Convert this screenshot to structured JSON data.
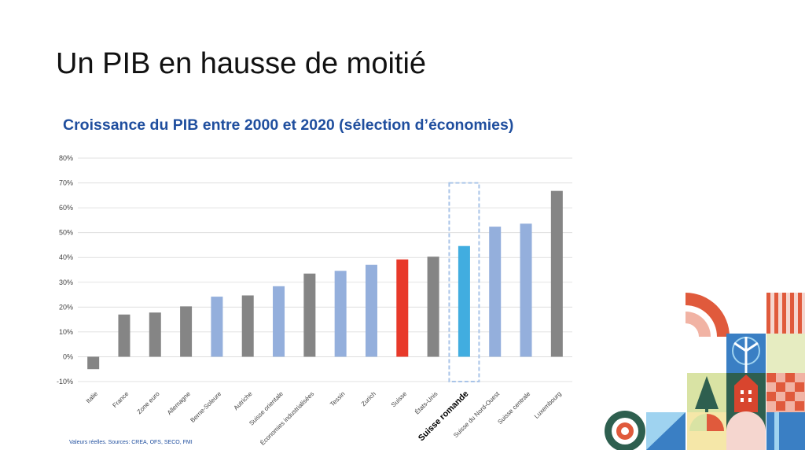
{
  "slide": {
    "title": "Un PIB en hausse de moitié",
    "footnote": "Valeurs réelles. Sources: CREA, OFS, SECO, FMI"
  },
  "colors": {
    "grey": "#858585",
    "lightblue": "#94afdc",
    "red": "#e8392a",
    "cyan": "#41ade0",
    "title_blue": "#1f4e9e",
    "highlight_box": "#a9c4e8"
  },
  "chart_data": {
    "type": "bar",
    "title": "Croissance du PIB entre 2000 et 2020 (sélection d’économies)",
    "xlabel": "",
    "ylabel": "",
    "ylim": [
      -10,
      80
    ],
    "yticks": [
      "-10%",
      "0%",
      "10%",
      "20%",
      "30%",
      "40%",
      "50%",
      "60%",
      "70%",
      "80%"
    ],
    "grid": true,
    "categories": [
      "Italie",
      "France",
      "Zone euro",
      "Allemagne",
      "Berne-Soleure",
      "Autriche",
      "Suisse orientale",
      "Économies industrialisées",
      "Tessin",
      "Zurich",
      "Suisse",
      "États-Unis",
      "Suisse romande",
      "Suisse du Nord-Ouest",
      "Suisse centrale",
      "Luxembourg"
    ],
    "values": [
      -5,
      17,
      17.8,
      20.3,
      24.2,
      24.7,
      28.4,
      33.5,
      34.6,
      37,
      39.2,
      40.3,
      44.6,
      52.4,
      53.6,
      66.8
    ],
    "bar_colors": [
      "grey",
      "grey",
      "grey",
      "grey",
      "lightblue",
      "grey",
      "lightblue",
      "grey",
      "lightblue",
      "lightblue",
      "red",
      "grey",
      "cyan",
      "lightblue",
      "lightblue",
      "grey"
    ],
    "highlight": "Suisse romande"
  }
}
